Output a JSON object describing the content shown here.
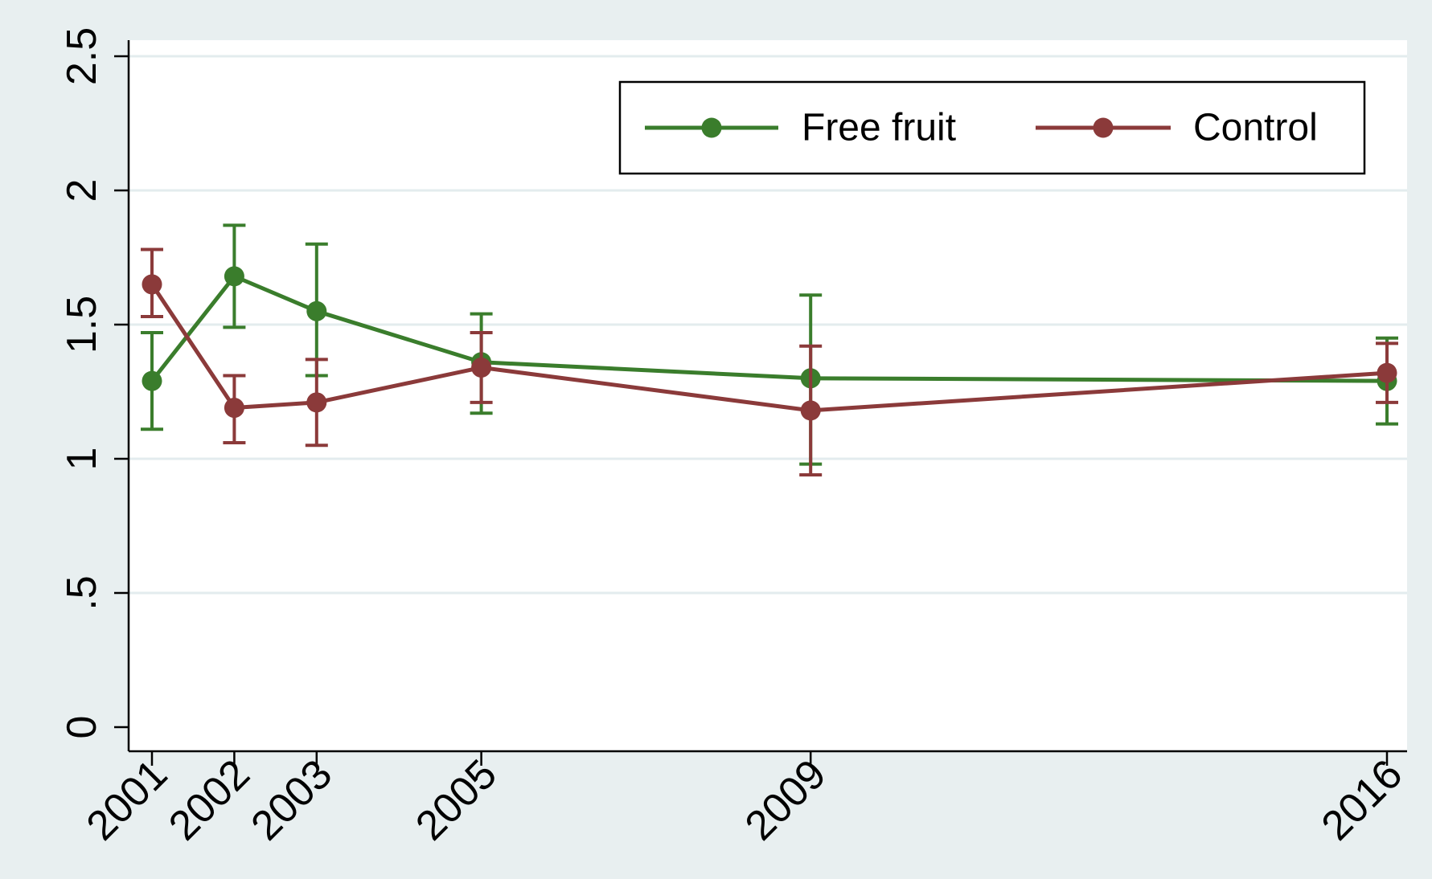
{
  "chart_data": {
    "type": "line",
    "title": "",
    "xlabel": "",
    "ylabel": "",
    "categories": [
      "2001",
      "2002",
      "2003",
      "2005",
      "2009",
      "2016"
    ],
    "x": [
      2001,
      2002,
      2003,
      2005,
      2009,
      2016
    ],
    "xlim": [
      2001,
      2016
    ],
    "ylim": [
      0,
      2.5
    ],
    "y_ticks": [
      0,
      0.5,
      1,
      1.5,
      2,
      2.5
    ],
    "y_tick_labels": [
      "0",
      ".5",
      "1",
      "1.5",
      "2",
      "2.5"
    ],
    "grid": true,
    "legend_position": "top-right",
    "series": [
      {
        "name": "Free fruit",
        "color": "#3a7d2c",
        "values": [
          1.29,
          1.68,
          1.55,
          1.36,
          1.3,
          1.29
        ],
        "ci_low": [
          1.11,
          1.49,
          1.31,
          1.17,
          0.98,
          1.13
        ],
        "ci_high": [
          1.47,
          1.87,
          1.8,
          1.54,
          1.61,
          1.45
        ]
      },
      {
        "name": "Control",
        "color": "#8b3a3a",
        "values": [
          1.65,
          1.19,
          1.21,
          1.34,
          1.18,
          1.32
        ],
        "ci_low": [
          1.53,
          1.06,
          1.05,
          1.21,
          0.94,
          1.21
        ],
        "ci_high": [
          1.78,
          1.31,
          1.37,
          1.47,
          1.42,
          1.43
        ]
      }
    ]
  },
  "colors": {
    "outer_background": "#e8eff0",
    "plot_background": "#ffffff",
    "gridline": "#e3ecee"
  }
}
